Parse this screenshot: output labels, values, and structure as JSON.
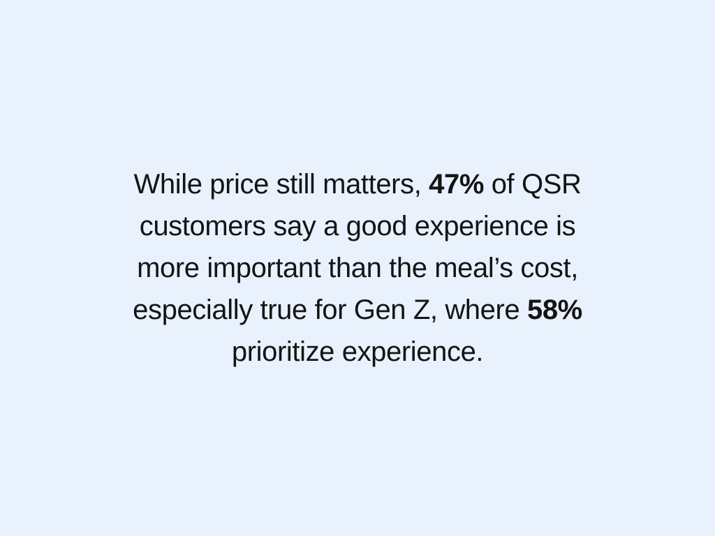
{
  "colors": {
    "background": "#E8F1FC",
    "text": "#141414"
  },
  "quote": {
    "lines": [
      {
        "segments": [
          {
            "text": "While price still matters, ",
            "bold": false
          },
          {
            "text": "47%",
            "bold": true
          },
          {
            "text": " of QSR",
            "bold": false
          }
        ]
      },
      {
        "segments": [
          {
            "text": "customers say a good experience is",
            "bold": false
          }
        ]
      },
      {
        "segments": [
          {
            "text": "more important than the meal’s cost,",
            "bold": false
          }
        ]
      },
      {
        "segments": [
          {
            "text": "especially true for Gen Z, where ",
            "bold": false
          },
          {
            "text": "58%",
            "bold": true
          }
        ]
      },
      {
        "segments": [
          {
            "text": "prioritize experience.",
            "bold": false
          }
        ]
      }
    ]
  }
}
